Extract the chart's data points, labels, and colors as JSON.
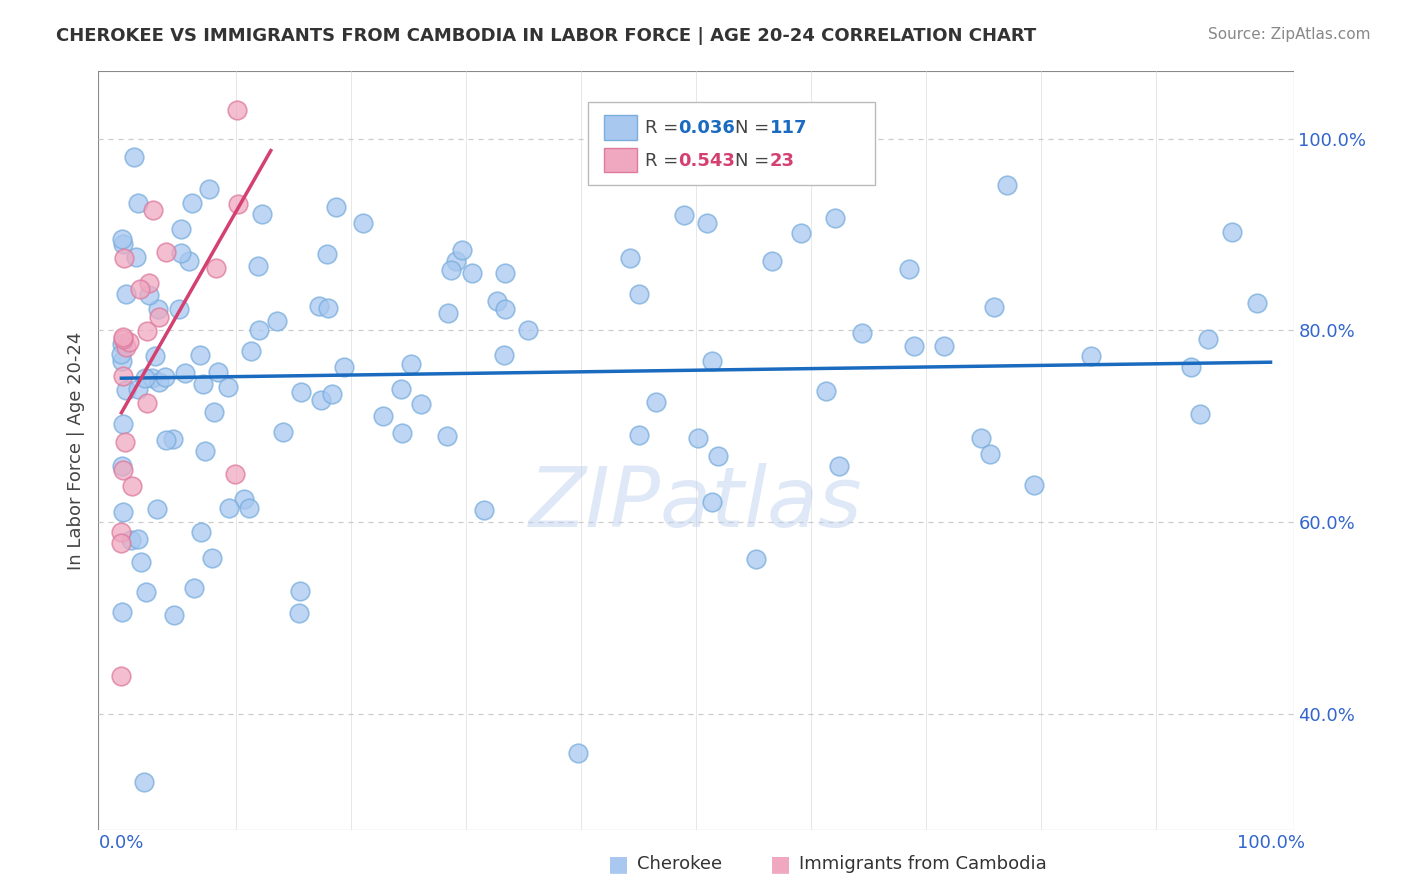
{
  "title": "CHEROKEE VS IMMIGRANTS FROM CAMBODIA IN LABOR FORCE | AGE 20-24 CORRELATION CHART",
  "source": "Source: ZipAtlas.com",
  "ylabel": "In Labor Force | Age 20-24",
  "cherokee_color": "#a8c8f0",
  "cherokee_edge_color": "#7aaedd",
  "cambodia_color": "#f0a8c0",
  "cambodia_edge_color": "#dd7a9e",
  "cherokee_line_color": "#1a6bbf",
  "cambodia_line_color": "#d44070",
  "watermark": "ZIPatlas",
  "cherokee_label": "Cherokee",
  "cambodia_label": "Immigrants from Cambodia",
  "grid_color": "#cccccc",
  "axis_color": "#888888",
  "tick_color": "#3366cc",
  "title_color": "#333333",
  "source_color": "#888888",
  "ylim_min": 0.28,
  "ylim_max": 1.07,
  "xlim_min": -0.02,
  "xlim_max": 1.02,
  "yticks": [
    0.4,
    0.6,
    0.8,
    1.0
  ],
  "yticklabels": [
    "40.0%",
    "60.0%",
    "80.0%",
    "100.0%"
  ],
  "xtick_left": "0.0%",
  "xtick_right": "100.0%"
}
